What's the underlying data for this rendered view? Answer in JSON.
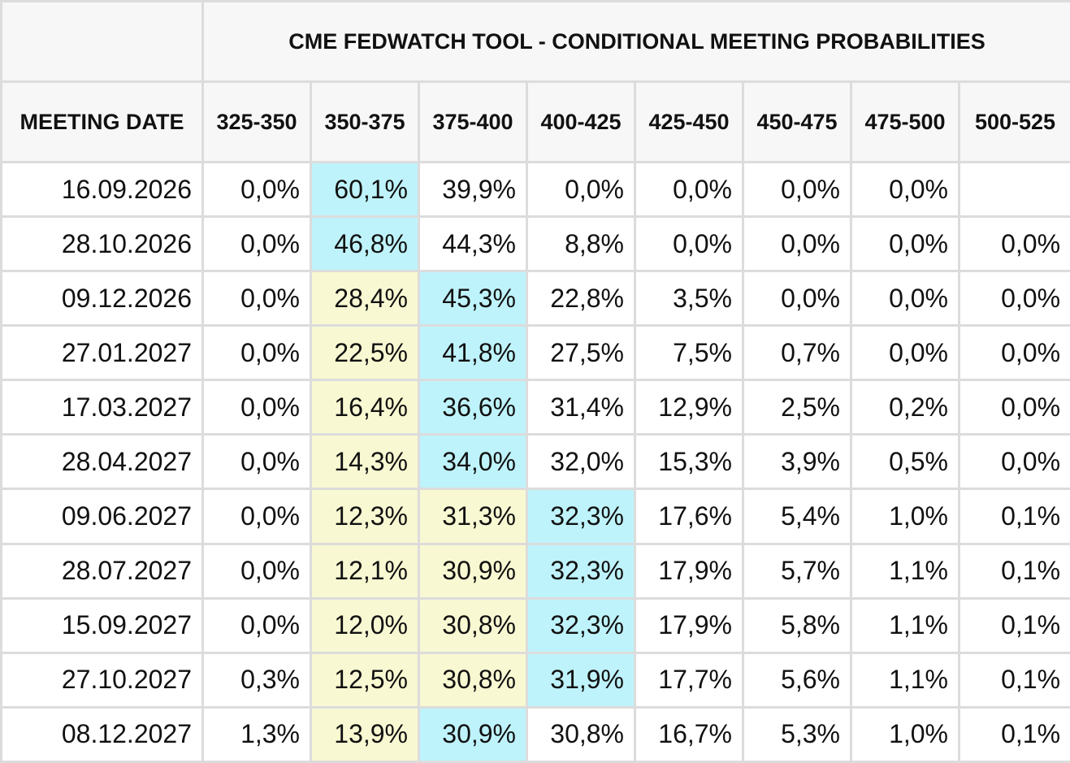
{
  "chart_data": {
    "type": "table",
    "title": "CME FEDWATCH TOOL - CONDITIONAL MEETING PROBABILITIES",
    "row_header_label": "MEETING DATE",
    "columns": [
      "325-350",
      "350-375",
      "375-400",
      "400-425",
      "425-450",
      "450-475",
      "475-500",
      "500-525"
    ],
    "highlight_colors": {
      "cyan": "#bff3fb",
      "yellow": "#f8f8d2"
    },
    "rows": [
      {
        "date": "16.09.2026",
        "values": [
          "0,0%",
          "60,1%",
          "39,9%",
          "0,0%",
          "0,0%",
          "0,0%",
          "0,0%",
          ""
        ],
        "highlight": [
          "",
          "cyan",
          "",
          "",
          "",
          "",
          "",
          ""
        ]
      },
      {
        "date": "28.10.2026",
        "values": [
          "0,0%",
          "46,8%",
          "44,3%",
          "8,8%",
          "0,0%",
          "0,0%",
          "0,0%",
          "0,0%"
        ],
        "highlight": [
          "",
          "cyan",
          "",
          "",
          "",
          "",
          "",
          ""
        ]
      },
      {
        "date": "09.12.2026",
        "values": [
          "0,0%",
          "28,4%",
          "45,3%",
          "22,8%",
          "3,5%",
          "0,0%",
          "0,0%",
          "0,0%"
        ],
        "highlight": [
          "",
          "yellow",
          "cyan",
          "",
          "",
          "",
          "",
          ""
        ]
      },
      {
        "date": "27.01.2027",
        "values": [
          "0,0%",
          "22,5%",
          "41,8%",
          "27,5%",
          "7,5%",
          "0,7%",
          "0,0%",
          "0,0%"
        ],
        "highlight": [
          "",
          "yellow",
          "cyan",
          "",
          "",
          "",
          "",
          ""
        ]
      },
      {
        "date": "17.03.2027",
        "values": [
          "0,0%",
          "16,4%",
          "36,6%",
          "31,4%",
          "12,9%",
          "2,5%",
          "0,2%",
          "0,0%"
        ],
        "highlight": [
          "",
          "yellow",
          "cyan",
          "",
          "",
          "",
          "",
          ""
        ]
      },
      {
        "date": "28.04.2027",
        "values": [
          "0,0%",
          "14,3%",
          "34,0%",
          "32,0%",
          "15,3%",
          "3,9%",
          "0,5%",
          "0,0%"
        ],
        "highlight": [
          "",
          "yellow",
          "cyan",
          "",
          "",
          "",
          "",
          ""
        ]
      },
      {
        "date": "09.06.2027",
        "values": [
          "0,0%",
          "12,3%",
          "31,3%",
          "32,3%",
          "17,6%",
          "5,4%",
          "1,0%",
          "0,1%"
        ],
        "highlight": [
          "",
          "yellow",
          "yellow",
          "cyan",
          "",
          "",
          "",
          ""
        ]
      },
      {
        "date": "28.07.2027",
        "values": [
          "0,0%",
          "12,1%",
          "30,9%",
          "32,3%",
          "17,9%",
          "5,7%",
          "1,1%",
          "0,1%"
        ],
        "highlight": [
          "",
          "yellow",
          "yellow",
          "cyan",
          "",
          "",
          "",
          ""
        ]
      },
      {
        "date": "15.09.2027",
        "values": [
          "0,0%",
          "12,0%",
          "30,8%",
          "32,3%",
          "17,9%",
          "5,8%",
          "1,1%",
          "0,1%"
        ],
        "highlight": [
          "",
          "yellow",
          "yellow",
          "cyan",
          "",
          "",
          "",
          ""
        ]
      },
      {
        "date": "27.10.2027",
        "values": [
          "0,3%",
          "12,5%",
          "30,8%",
          "31,9%",
          "17,7%",
          "5,6%",
          "1,1%",
          "0,1%"
        ],
        "highlight": [
          "",
          "yellow",
          "yellow",
          "cyan",
          "",
          "",
          "",
          ""
        ]
      },
      {
        "date": "08.12.2027",
        "values": [
          "1,3%",
          "13,9%",
          "30,9%",
          "30,8%",
          "16,7%",
          "5,3%",
          "1,0%",
          "0,1%"
        ],
        "highlight": [
          "",
          "yellow",
          "cyan",
          "",
          "",
          "",
          "",
          ""
        ]
      }
    ]
  }
}
